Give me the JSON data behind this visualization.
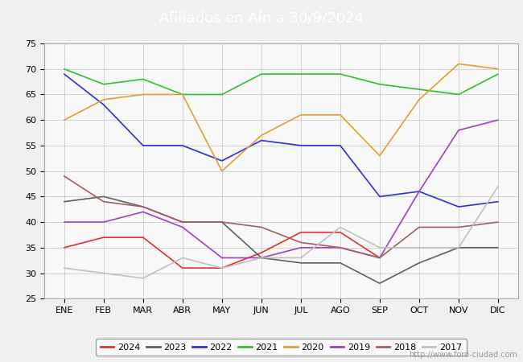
{
  "title": "Afiliados en Aín a 30/9/2024",
  "title_bg": "#4a86c8",
  "months": [
    "ENE",
    "FEB",
    "MAR",
    "ABR",
    "MAY",
    "JUN",
    "JUL",
    "AGO",
    "SEP",
    "OCT",
    "NOV",
    "DIC"
  ],
  "ylim": [
    25,
    75
  ],
  "yticks": [
    25,
    30,
    35,
    40,
    45,
    50,
    55,
    60,
    65,
    70,
    75
  ],
  "series": {
    "2024": {
      "color": "#e03030",
      "data": [
        35,
        37,
        37,
        31,
        31,
        34,
        38,
        38,
        33,
        null,
        null,
        null
      ]
    },
    "2023": {
      "color": "#606060",
      "data": [
        44,
        45,
        43,
        40,
        40,
        33,
        32,
        32,
        28,
        32,
        35,
        35
      ]
    },
    "2022": {
      "color": "#3030d0",
      "data": [
        69,
        63,
        55,
        55,
        52,
        56,
        55,
        55,
        45,
        46,
        43,
        44
      ]
    },
    "2021": {
      "color": "#30c030",
      "data": [
        70,
        67,
        68,
        65,
        65,
        69,
        69,
        69,
        67,
        66,
        65,
        69
      ]
    },
    "2020": {
      "color": "#e0a030",
      "data": [
        60,
        64,
        65,
        65,
        50,
        57,
        61,
        61,
        53,
        64,
        71,
        70
      ]
    },
    "2019": {
      "color": "#a040c0",
      "data": [
        40,
        40,
        42,
        39,
        33,
        33,
        35,
        35,
        33,
        46,
        58,
        60
      ]
    },
    "2018": {
      "color": "#a06060",
      "data": [
        49,
        44,
        43,
        40,
        40,
        39,
        36,
        35,
        33,
        39,
        39,
        40
      ]
    },
    "2017": {
      "color": "#c0c0c0",
      "data": [
        31,
        30,
        29,
        33,
        31,
        33,
        33,
        39,
        35,
        35,
        35,
        47
      ]
    }
  },
  "legend_order": [
    "2024",
    "2023",
    "2022",
    "2021",
    "2020",
    "2019",
    "2018",
    "2017"
  ],
  "watermark": "http://www.foro-ciudad.com",
  "bg_color": "#f0f0f0",
  "plot_bg": "#f8f8f8"
}
